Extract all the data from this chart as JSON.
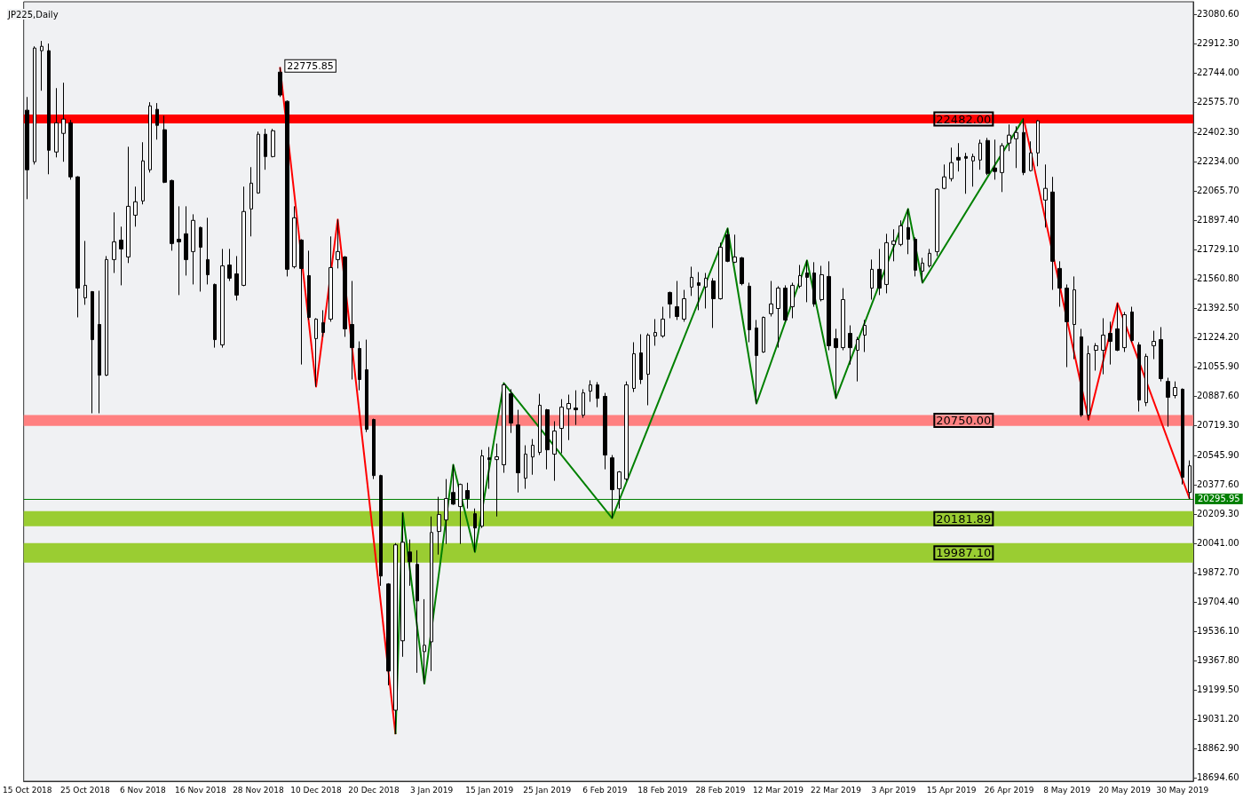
{
  "chart_data": {
    "type": "candlestick",
    "title": "JP225,Daily",
    "categories": [
      "15 Oct 2018",
      null,
      null,
      null,
      null,
      null,
      null,
      null,
      "25 Oct 2018",
      null,
      null,
      null,
      null,
      null,
      null,
      null,
      "6 Nov 2018",
      null,
      null,
      null,
      null,
      null,
      null,
      null,
      "16 Nov 2018",
      null,
      null,
      null,
      null,
      null,
      null,
      null,
      "28 Nov 2018",
      null,
      null,
      null,
      null,
      null,
      null,
      null,
      "10 Dec 2018",
      null,
      null,
      null,
      null,
      null,
      null,
      null,
      "20 Dec 2018",
      null,
      null,
      null,
      null,
      null,
      null,
      null,
      "3 Jan 2019",
      null,
      null,
      null,
      null,
      null,
      null,
      null,
      "15 Jan 2019",
      null,
      null,
      null,
      null,
      null,
      null,
      null,
      "25 Jan 2019",
      null,
      null,
      null,
      null,
      null,
      null,
      null,
      "6 Feb 2019",
      null,
      null,
      null,
      null,
      null,
      null,
      null,
      "18 Feb 2019",
      null,
      null,
      null,
      null,
      null,
      null,
      null,
      "28 Feb 2019",
      null,
      null,
      null,
      null,
      null,
      null,
      null,
      "12 Mar 2019",
      null,
      null,
      null,
      null,
      null,
      null,
      null,
      "22 Mar 2019",
      null,
      null,
      null,
      null,
      null,
      null,
      null,
      "3 Apr 2019",
      null,
      null,
      null,
      null,
      null,
      null,
      null,
      "15 Apr 2019",
      null,
      null,
      null,
      null,
      null,
      null,
      null,
      "26 Apr 2019",
      null,
      null,
      null,
      null,
      null,
      null,
      null,
      "8 May 2019",
      null,
      null,
      null,
      null,
      null,
      null,
      null,
      "20 May 2019",
      null,
      null,
      null,
      null,
      null,
      null,
      null,
      "30 May 2019",
      null
    ],
    "ohlc": [
      [
        22529,
        22605,
        22018,
        22187
      ],
      [
        22233,
        22896,
        22217,
        22886
      ],
      [
        22871,
        22927,
        22641,
        22896
      ],
      [
        22871,
        22912,
        22161,
        22299
      ],
      [
        22289,
        22656,
        22258,
        22457
      ],
      [
        22396,
        22687,
        22233,
        22478
      ],
      [
        22457,
        22473,
        22130,
        22146
      ],
      [
        22146,
        22150,
        21339,
        21507
      ],
      [
        21451,
        21778,
        21411,
        21523
      ],
      [
        21487,
        21490,
        20788,
        21211
      ],
      [
        21298,
        21492,
        20788,
        21007
      ],
      [
        21007,
        21691,
        21002,
        21671
      ],
      [
        21671,
        21942,
        21594,
        21773
      ],
      [
        21783,
        21860,
        21523,
        21732
      ],
      [
        21686,
        22319,
        21651,
        21977
      ],
      [
        21926,
        22090,
        21860,
        22003
      ],
      [
        22008,
        22345,
        21988,
        22238
      ],
      [
        22187,
        22575,
        22171,
        22554
      ],
      [
        22534,
        22570,
        22360,
        22442
      ],
      [
        22417,
        22498,
        22110,
        22115
      ],
      [
        22125,
        22130,
        21722,
        21763
      ],
      [
        21788,
        21977,
        21467,
        21773
      ],
      [
        21819,
        21977,
        21579,
        21671
      ],
      [
        21717,
        21931,
        21528,
        21896
      ],
      [
        21855,
        21860,
        21487,
        21742
      ],
      [
        21671,
        21911,
        21528,
        21584
      ],
      [
        21528,
        21533,
        21165,
        21211
      ],
      [
        21181,
        21732,
        21165,
        21635
      ],
      [
        21640,
        21732,
        21548,
        21564
      ],
      [
        21589,
        21691,
        21436,
        21467
      ],
      [
        21523,
        22090,
        21518,
        21947
      ],
      [
        21962,
        22202,
        21804,
        22110
      ],
      [
        22054,
        22406,
        22049,
        22391
      ],
      [
        22391,
        22422,
        22187,
        22263
      ],
      [
        22263,
        22422,
        22258,
        22411
      ],
      [
        22748,
        22775.85,
        22605,
        22616
      ],
      [
        22580,
        22585,
        21574,
        21615
      ],
      [
        21630,
        21977,
        21620,
        21911
      ],
      [
        21783,
        21788,
        21068,
        21620
      ],
      [
        21579,
        21722,
        21324,
        21339
      ],
      [
        21217,
        21334,
        20941,
        21329
      ],
      [
        21308,
        21380,
        21227,
        21252
      ],
      [
        21329,
        21804,
        21314,
        21625
      ],
      [
        21671,
        21901,
        21620,
        21717
      ],
      [
        21686,
        21691,
        21227,
        21273
      ],
      [
        21298,
        21548,
        20982,
        21165
      ],
      [
        21160,
        21201,
        20920,
        20982
      ],
      [
        21038,
        21211,
        20680,
        20696
      ],
      [
        20752,
        20757,
        20410,
        20430
      ],
      [
        20430,
        20435,
        19797,
        19853
      ],
      [
        19807,
        19812,
        19225,
        19307
      ],
      [
        19082,
        20042,
        18944,
        20032
      ],
      [
        19481,
        20216,
        19389,
        20047
      ],
      [
        19991,
        20063,
        19797,
        19935
      ],
      [
        19920,
        20001,
        19297,
        19710
      ],
      [
        19419,
        19720,
        19235,
        19455
      ],
      [
        19475,
        20195,
        19307,
        20103
      ],
      [
        20109,
        20308,
        19976,
        20206
      ],
      [
        20175,
        20410,
        20037,
        20298
      ],
      [
        20333,
        20492,
        20262,
        20266
      ],
      [
        20252,
        20384,
        20037,
        20379
      ],
      [
        20344,
        20389,
        20241,
        20298
      ],
      [
        20211,
        20241,
        19991,
        20129
      ],
      [
        20139,
        20578,
        20129,
        20543
      ],
      [
        20532,
        20594,
        20354,
        20522
      ],
      [
        20522,
        20614,
        20195,
        20538
      ],
      [
        20492,
        20961,
        20446,
        20951
      ],
      [
        20900,
        20926,
        20675,
        20732
      ],
      [
        20721,
        20808,
        20333,
        20446
      ],
      [
        20415,
        20604,
        20354,
        20553
      ],
      [
        20537,
        20640,
        20435,
        20604
      ],
      [
        20563,
        20900,
        20548,
        20834
      ],
      [
        20808,
        20813,
        20466,
        20578
      ],
      [
        20553,
        20742,
        20400,
        20686
      ],
      [
        20701,
        20869,
        20558,
        20823
      ],
      [
        20813,
        20895,
        20634,
        20844
      ],
      [
        20818,
        20920,
        20721,
        20808
      ],
      [
        20777,
        20926,
        20762,
        20905
      ],
      [
        20915,
        20977,
        20854,
        20951
      ],
      [
        20951,
        20967,
        20823,
        20874
      ],
      [
        20885,
        20905,
        20466,
        20548
      ],
      [
        20532,
        20548,
        20185,
        20349
      ],
      [
        20354,
        20456,
        20241,
        20451
      ],
      [
        20410,
        20971,
        20400,
        20951
      ],
      [
        20931,
        21196,
        20910,
        21130
      ],
      [
        21135,
        21242,
        20956,
        20982
      ],
      [
        21012,
        21247,
        20834,
        21237
      ],
      [
        21232,
        21329,
        21176,
        21252
      ],
      [
        21232,
        21400,
        21222,
        21329
      ],
      [
        21482,
        21487,
        21334,
        21416
      ],
      [
        21400,
        21548,
        21324,
        21344
      ],
      [
        21329,
        21497,
        21314,
        21446
      ],
      [
        21513,
        21630,
        21462,
        21569
      ],
      [
        21538,
        21599,
        21380,
        21523
      ],
      [
        21513,
        21594,
        21390,
        21564
      ],
      [
        21548,
        21564,
        21278,
        21446
      ],
      [
        21446,
        21768,
        21441,
        21742
      ],
      [
        21814,
        21850,
        21656,
        21661
      ],
      [
        21656,
        21814,
        21651,
        21686
      ],
      [
        21681,
        21686,
        21523,
        21533
      ],
      [
        21518,
        21538,
        21196,
        21268
      ],
      [
        21278,
        21324,
        20844,
        21120
      ],
      [
        21140,
        21344,
        21135,
        21339
      ],
      [
        21360,
        21548,
        21344,
        21416
      ],
      [
        21390,
        21518,
        21165,
        21507
      ],
      [
        21507,
        21523,
        21314,
        21324
      ],
      [
        21400,
        21538,
        21334,
        21523
      ],
      [
        21518,
        21640,
        21507,
        21579
      ],
      [
        21594,
        21666,
        21426,
        21569
      ],
      [
        21594,
        21656,
        21400,
        21416
      ],
      [
        21441,
        21635,
        21431,
        21584
      ],
      [
        21574,
        21661,
        21150,
        21176
      ],
      [
        21217,
        21273,
        20874,
        21165
      ],
      [
        21165,
        21507,
        21150,
        21441
      ],
      [
        21247,
        21293,
        21068,
        21165
      ],
      [
        21150,
        21227,
        20971,
        21211
      ],
      [
        21237,
        21324,
        21140,
        21293
      ],
      [
        21507,
        21671,
        21441,
        21615
      ],
      [
        21615,
        21732,
        21467,
        21507
      ],
      [
        21528,
        21819,
        21477,
        21768
      ],
      [
        21758,
        21845,
        21661,
        21778
      ],
      [
        21758,
        21896,
        21748,
        21865
      ],
      [
        21855,
        21962,
        21702,
        21788
      ],
      [
        21788,
        21799,
        21574,
        21610
      ],
      [
        21605,
        21681,
        21538,
        21651
      ],
      [
        21635,
        21732,
        21625,
        21707
      ],
      [
        21717,
        22080,
        21691,
        22075
      ],
      [
        22080,
        22217,
        22075,
        22146
      ],
      [
        22136,
        22314,
        22120,
        22228
      ],
      [
        22258,
        22340,
        22177,
        22243
      ],
      [
        22263,
        22284,
        22049,
        22253
      ],
      [
        22238,
        22279,
        22090,
        22263
      ],
      [
        22243,
        22360,
        22187,
        22340
      ],
      [
        22355,
        22370,
        22156,
        22166
      ],
      [
        22197,
        22360,
        22130,
        22177
      ],
      [
        22171,
        22340,
        22059,
        22325
      ],
      [
        22340,
        22447,
        22294,
        22386
      ],
      [
        22365,
        22437,
        22197,
        22401
      ],
      [
        22401,
        22482,
        22156,
        22171
      ],
      [
        22182,
        22350,
        22177,
        22284
      ],
      [
        22284,
        22473,
        22207,
        22468
      ],
      [
        22013,
        22217,
        21855,
        22080
      ],
      [
        22059,
        22146,
        21497,
        21661
      ],
      [
        21620,
        21661,
        21400,
        21507
      ],
      [
        21507,
        21528,
        21053,
        21314
      ],
      [
        21298,
        21574,
        21099,
        21497
      ],
      [
        21227,
        21273,
        20767,
        20778
      ],
      [
        20778,
        21176,
        20750,
        21130
      ],
      [
        21150,
        21191,
        21033,
        21176
      ],
      [
        21150,
        21334,
        21012,
        21237
      ],
      [
        21247,
        21314,
        21068,
        21201
      ],
      [
        21273,
        21421,
        21145,
        21150
      ],
      [
        21165,
        21370,
        21140,
        21354
      ],
      [
        21370,
        21400,
        21196,
        21206
      ],
      [
        21181,
        21196,
        20798,
        20864
      ],
      [
        20849,
        21130,
        20829,
        21115
      ],
      [
        21176,
        21262,
        21099,
        21201
      ],
      [
        21211,
        21283,
        20971,
        20987
      ],
      [
        20971,
        20992,
        20711,
        20880
      ],
      [
        20890,
        20971,
        20874,
        20936
      ],
      [
        20926,
        20931,
        20379,
        20420
      ],
      [
        20333,
        20517,
        20296,
        20486
      ]
    ],
    "series": [
      {
        "type": "line",
        "color": "#ff0000",
        "values": [
          null,
          null,
          null,
          null,
          null,
          null,
          null,
          null,
          null,
          null,
          null,
          null,
          null,
          null,
          null,
          null,
          null,
          null,
          null,
          null,
          null,
          null,
          null,
          null,
          null,
          null,
          null,
          null,
          null,
          null,
          null,
          null,
          null,
          null,
          null,
          22776,
          null,
          null,
          null,
          null,
          20941,
          null,
          null,
          21901,
          null,
          null,
          null,
          null,
          null,
          null,
          null,
          18944,
          null,
          null,
          null,
          null,
          null,
          null,
          null,
          null,
          null,
          null,
          null,
          null,
          null,
          null,
          null,
          null,
          null,
          null,
          null,
          null,
          null,
          null,
          null,
          null,
          null,
          null,
          null,
          null,
          null,
          null,
          null,
          null,
          null,
          null,
          null,
          null,
          null,
          null,
          null,
          null,
          null,
          null,
          null,
          null,
          null,
          null,
          null,
          null,
          null,
          null,
          null,
          null,
          null,
          null,
          null,
          null,
          null,
          null,
          null,
          null,
          null,
          null,
          null,
          null,
          null,
          null,
          null,
          null,
          null,
          null,
          null,
          null,
          null,
          null,
          null,
          null,
          null,
          null,
          null,
          null,
          null,
          null,
          null,
          null,
          null,
          null,
          null,
          null,
          null,
          null,
          null,
          null,
          null,
          null,
          null,
          null,
          null,
          null,
          null,
          null,
          null,
          null,
          null,
          null,
          null,
          null,
          null,
          null,
          null,
          null
        ]
      },
      {
        "type": "line",
        "color": "#008000",
        "values": [
          null,
          null,
          null,
          null,
          null,
          null,
          null,
          null,
          null,
          null,
          null,
          null,
          null,
          null,
          null,
          null,
          null,
          null,
          null,
          null,
          null,
          null,
          null,
          null,
          null,
          null,
          null,
          null,
          null,
          null,
          null,
          null,
          null,
          null,
          null,
          null,
          null,
          null,
          null,
          null,
          null,
          null,
          null,
          null,
          null,
          null,
          null,
          null,
          null,
          null,
          null,
          18944,
          20216,
          null,
          null,
          19235,
          null,
          null,
          null,
          20492,
          null,
          null,
          19991,
          null,
          null,
          null,
          20961,
          null,
          null,
          null,
          null,
          null,
          null,
          null,
          null,
          null,
          null,
          null,
          null,
          null,
          null,
          20185,
          null,
          null,
          null,
          null,
          null,
          null,
          null,
          null,
          null,
          null,
          null,
          null,
          null,
          null,
          null,
          21850,
          null,
          null,
          null,
          20844,
          null,
          null,
          null,
          null,
          null,
          null,
          21666,
          null,
          null,
          null,
          20874,
          null,
          null,
          null,
          null,
          null,
          null,
          null,
          null,
          null,
          21962,
          null,
          21538,
          null,
          null,
          null,
          null,
          null,
          null,
          null,
          null,
          null,
          null,
          null,
          null,
          null,
          22482,
          null,
          null,
          null,
          null,
          null,
          null,
          null,
          null,
          null,
          null,
          null,
          null,
          null,
          null,
          null,
          null,
          null,
          null,
          null,
          null,
          null,
          null,
          null
        ]
      },
      {
        "type": "line",
        "color": "#ff0000",
        "values": [
          null,
          null,
          null,
          null,
          null,
          null,
          null,
          null,
          null,
          null,
          null,
          null,
          null,
          null,
          null,
          null,
          null,
          null,
          null,
          null,
          null,
          null,
          null,
          null,
          null,
          null,
          null,
          null,
          null,
          null,
          null,
          null,
          null,
          null,
          null,
          null,
          null,
          null,
          null,
          null,
          null,
          null,
          null,
          null,
          null,
          null,
          null,
          null,
          null,
          null,
          null,
          null,
          null,
          null,
          null,
          null,
          null,
          null,
          null,
          null,
          null,
          null,
          null,
          null,
          null,
          null,
          null,
          null,
          null,
          null,
          null,
          null,
          null,
          null,
          null,
          null,
          null,
          null,
          null,
          null,
          null,
          null,
          null,
          null,
          null,
          null,
          null,
          null,
          null,
          null,
          null,
          null,
          null,
          null,
          null,
          null,
          null,
          null,
          null,
          null,
          null,
          null,
          null,
          null,
          null,
          null,
          null,
          null,
          null,
          null,
          null,
          null,
          null,
          null,
          null,
          null,
          null,
          null,
          null,
          null,
          null,
          null,
          null,
          null,
          null,
          null,
          null,
          null,
          null,
          null,
          null,
          null,
          null,
          null,
          null,
          null,
          null,
          null,
          22482,
          null,
          null,
          null,
          null,
          null,
          null,
          null,
          null,
          20750,
          null,
          null,
          null,
          21421,
          null,
          null,
          null,
          null,
          null,
          null,
          null,
          null,
          null,
          20296
        ]
      }
    ],
    "ylim": [
      18674,
      23152
    ],
    "yticks": [
      {
        "value": 23080.6,
        "label": "23080.60"
      },
      {
        "value": 22912.3,
        "label": "22912.30"
      },
      {
        "value": 22744,
        "label": "22744.00"
      },
      {
        "value": 22575.7,
        "label": "22575.70"
      },
      {
        "value": 22402.3,
        "label": "22402.30"
      },
      {
        "value": 22234,
        "label": "22234.00"
      },
      {
        "value": 22065.7,
        "label": "22065.70"
      },
      {
        "value": 21897.4,
        "label": "21897.40"
      },
      {
        "value": 21729.1,
        "label": "21729.10"
      },
      {
        "value": 21560.8,
        "label": "21560.80"
      },
      {
        "value": 21392.5,
        "label": "21392.50"
      },
      {
        "value": 21224.2,
        "label": "21224.20"
      },
      {
        "value": 21055.9,
        "label": "21055.90"
      },
      {
        "value": 20887.6,
        "label": "20887.60"
      },
      {
        "value": 20719.3,
        "label": "20719.30"
      },
      {
        "value": 20545.9,
        "label": "20545.90"
      },
      {
        "value": 20377.6,
        "label": "20377.60"
      },
      {
        "value": 20209.3,
        "label": "20209.30"
      },
      {
        "value": 20041,
        "label": "20041.00"
      },
      {
        "value": 19872.7,
        "label": "19872.70"
      },
      {
        "value": 19704.4,
        "label": "19704.40"
      },
      {
        "value": 19536.1,
        "label": "19536.10"
      },
      {
        "value": 19367.8,
        "label": "19367.80"
      },
      {
        "value": 19199.5,
        "label": "19199.50"
      },
      {
        "value": 19031.2,
        "label": "19031.20"
      },
      {
        "value": 18862.9,
        "label": "18862.90"
      },
      {
        "value": 18694.6,
        "label": "18694.60"
      }
    ],
    "ref_lines": [
      {
        "axis": "y",
        "value": 20295.95,
        "label": "20295.95",
        "color": "#008000"
      }
    ],
    "bands": [
      {
        "axis": "y",
        "from": 22453,
        "to": 22504,
        "label": "22482.00",
        "color": "#ff0000"
      },
      {
        "axis": "y",
        "from": 20716,
        "to": 20778,
        "label": "20750.00",
        "color": "#ff8080"
      },
      {
        "axis": "y",
        "from": 20139,
        "to": 20226,
        "label": "20181.89",
        "color": "#9acd32"
      },
      {
        "axis": "y",
        "from": 19930,
        "to": 20042,
        "label": "19987.10",
        "color": "#9acd32"
      }
    ],
    "annotations": [
      "22775.85"
    ],
    "grid": false
  }
}
